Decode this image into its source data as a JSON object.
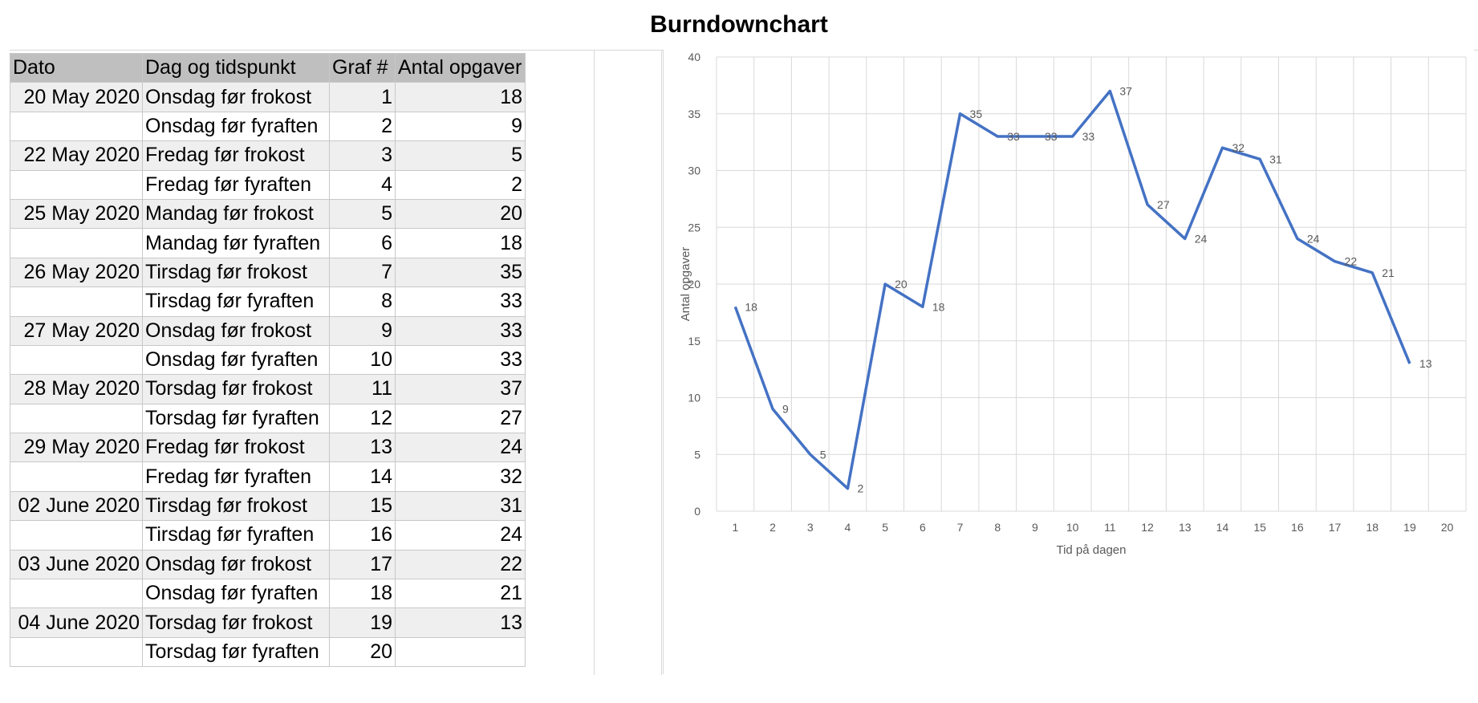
{
  "title": "Burndownchart",
  "table": {
    "headers": [
      "Dato",
      "Dag og tidspunkt",
      "Graf #",
      "Antal opgaver"
    ],
    "rows": [
      {
        "date": "20 May 2020",
        "slot": "Onsdag før frokost",
        "graph": "1",
        "tasks": "18"
      },
      {
        "date": "",
        "slot": "Onsdag før fyraften",
        "graph": "2",
        "tasks": "9"
      },
      {
        "date": "22 May 2020",
        "slot": "Fredag før frokost",
        "graph": "3",
        "tasks": "5"
      },
      {
        "date": "",
        "slot": "Fredag før fyraften",
        "graph": "4",
        "tasks": "2"
      },
      {
        "date": "25 May 2020",
        "slot": "Mandag før frokost",
        "graph": "5",
        "tasks": "20"
      },
      {
        "date": "",
        "slot": "Mandag før fyraften",
        "graph": "6",
        "tasks": "18"
      },
      {
        "date": "26 May 2020",
        "slot": "Tirsdag før frokost",
        "graph": "7",
        "tasks": "35"
      },
      {
        "date": "",
        "slot": "Tirsdag før fyraften",
        "graph": "8",
        "tasks": "33"
      },
      {
        "date": "27 May 2020",
        "slot": "Onsdag før frokost",
        "graph": "9",
        "tasks": "33"
      },
      {
        "date": "",
        "slot": "Onsdag før fyraften",
        "graph": "10",
        "tasks": "33"
      },
      {
        "date": "28 May 2020",
        "slot": "Torsdag før frokost",
        "graph": "11",
        "tasks": "37"
      },
      {
        "date": "",
        "slot": "Torsdag før fyraften",
        "graph": "12",
        "tasks": "27"
      },
      {
        "date": "29 May 2020",
        "slot": "Fredag før frokost",
        "graph": "13",
        "tasks": "24"
      },
      {
        "date": "",
        "slot": "Fredag før fyraften",
        "graph": "14",
        "tasks": "32"
      },
      {
        "date": "02 June 2020",
        "slot": "Tirsdag før frokost",
        "graph": "15",
        "tasks": "31"
      },
      {
        "date": "",
        "slot": "Tirsdag før fyraften",
        "graph": "16",
        "tasks": "24"
      },
      {
        "date": "03 June 2020",
        "slot": "Onsdag før frokost",
        "graph": "17",
        "tasks": "22"
      },
      {
        "date": "",
        "slot": "Onsdag før fyraften",
        "graph": "18",
        "tasks": "21"
      },
      {
        "date": "04 June 2020",
        "slot": "Torsdag før frokost",
        "graph": "19",
        "tasks": "13"
      },
      {
        "date": "",
        "slot": "Torsdag før fyraften",
        "graph": "20",
        "tasks": ""
      }
    ]
  },
  "colors": {
    "line": "#4472c4",
    "grid": "#d9d9d9",
    "axis_text": "#595959",
    "header_bg": "#bfbfbf"
  },
  "chart_data": {
    "type": "line",
    "title": "",
    "xlabel": "Tid på dagen",
    "ylabel": "Antal opgaver",
    "categories": [
      "1",
      "2",
      "3",
      "4",
      "5",
      "6",
      "7",
      "8",
      "9",
      "10",
      "11",
      "12",
      "13",
      "14",
      "15",
      "16",
      "17",
      "18",
      "19",
      "20"
    ],
    "ylim": [
      0,
      40
    ],
    "yticks": [
      "0",
      "5",
      "10",
      "15",
      "20",
      "25",
      "30",
      "35",
      "40"
    ],
    "grid": true,
    "data_labels": true,
    "series": [
      {
        "values": [
          18,
          9,
          5,
          2,
          20,
          18,
          35,
          33,
          33,
          33,
          37,
          27,
          24,
          32,
          31,
          24,
          22,
          21,
          13,
          null
        ]
      }
    ]
  }
}
